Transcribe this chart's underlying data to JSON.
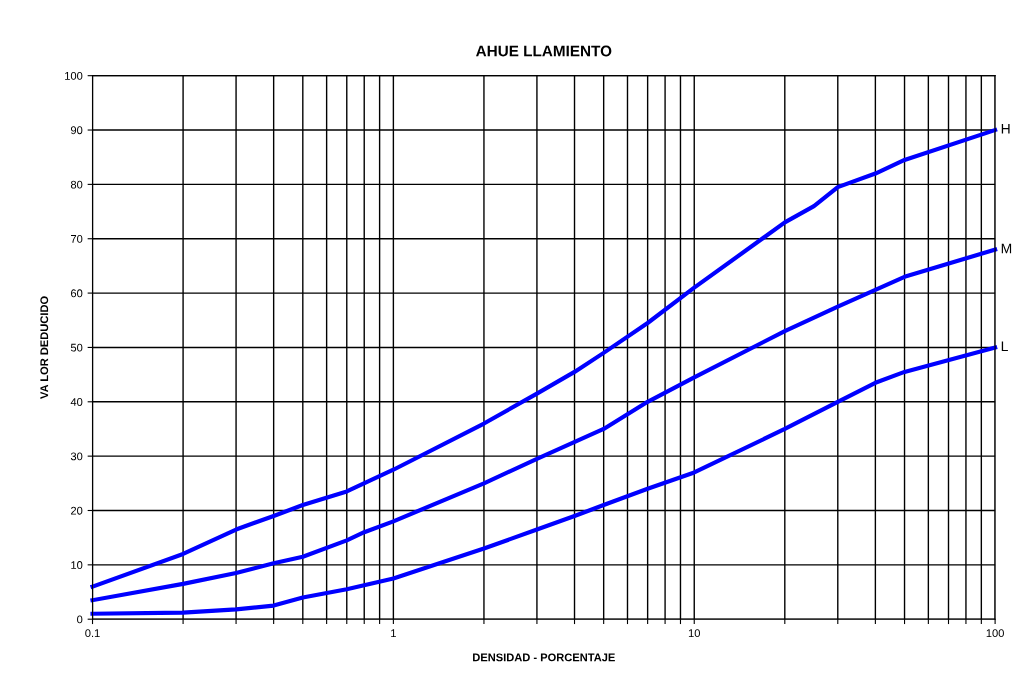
{
  "chart_data": {
    "type": "line",
    "title": "AHUE LLAMIENTO",
    "xlabel": "DENSIDAD - PORCENTAJE",
    "ylabel": "VA LOR DEDUCIDO",
    "log": "x",
    "grid": true,
    "xlim": [
      0.1,
      100
    ],
    "ylim": [
      0,
      100
    ],
    "xticks": [
      0.1,
      {
        "value": 0.2,
        "label": null
      },
      {
        "value": 0.3,
        "label": null
      },
      {
        "value": 0.4,
        "label": null
      },
      {
        "value": 0.5,
        "label": null
      },
      {
        "value": 0.6,
        "label": null
      },
      {
        "value": 0.7,
        "label": null
      },
      {
        "value": 0.8,
        "label": null
      },
      {
        "value": 0.9,
        "label": null
      },
      1,
      {
        "value": 2,
        "label": null
      },
      {
        "value": 3,
        "label": null
      },
      {
        "value": 4,
        "label": null
      },
      {
        "value": 5,
        "label": null
      },
      {
        "value": 6,
        "label": null
      },
      {
        "value": 7,
        "label": null
      },
      {
        "value": 8,
        "label": null
      },
      {
        "value": 9,
        "label": null
      },
      10,
      {
        "value": 20,
        "label": null
      },
      {
        "value": 30,
        "label": null
      },
      {
        "value": 40,
        "label": null
      },
      {
        "value": 50,
        "label": null
      },
      {
        "value": 60,
        "label": null
      },
      {
        "value": 70,
        "label": null
      },
      {
        "value": 80,
        "label": null
      },
      {
        "value": 90,
        "label": null
      },
      100
    ],
    "yticks": [
      0,
      10,
      20,
      30,
      40,
      50,
      60,
      70,
      80,
      90,
      100
    ],
    "series": [
      {
        "name": "H",
        "color": "#0000ff",
        "x": [
          0.1,
          0.2,
          0.3,
          0.4,
          0.5,
          0.7,
          1,
          2,
          3,
          4,
          5,
          7,
          10,
          20,
          25,
          30,
          40,
          50,
          100
        ],
        "values": [
          6,
          12,
          16.5,
          19,
          21,
          23.5,
          27.5,
          36,
          41.5,
          45.5,
          49,
          54.5,
          61,
          73,
          76,
          79.5,
          82,
          84.5,
          90
        ]
      },
      {
        "name": "M",
        "color": "#0000ff",
        "x": [
          0.1,
          0.2,
          0.3,
          0.4,
          0.5,
          0.7,
          0.8,
          1,
          2,
          3,
          5,
          7,
          10,
          20,
          30,
          50,
          100
        ],
        "values": [
          3.5,
          6.5,
          8.5,
          10.3,
          11.5,
          14.5,
          16,
          18,
          25,
          29.5,
          35,
          40,
          44.5,
          53,
          57.5,
          63,
          68
        ]
      },
      {
        "name": "L",
        "color": "#0000ff",
        "x": [
          0.1,
          0.2,
          0.3,
          0.4,
          0.5,
          0.7,
          1,
          2,
          3,
          4,
          5,
          7,
          10,
          20,
          30,
          40,
          50,
          100
        ],
        "values": [
          1,
          1.2,
          1.8,
          2.5,
          4,
          5.5,
          7.5,
          13,
          16.5,
          19,
          21,
          24,
          27,
          35,
          40,
          43.5,
          45.5,
          50
        ]
      }
    ],
    "line_style": "solid",
    "marker": "none"
  }
}
